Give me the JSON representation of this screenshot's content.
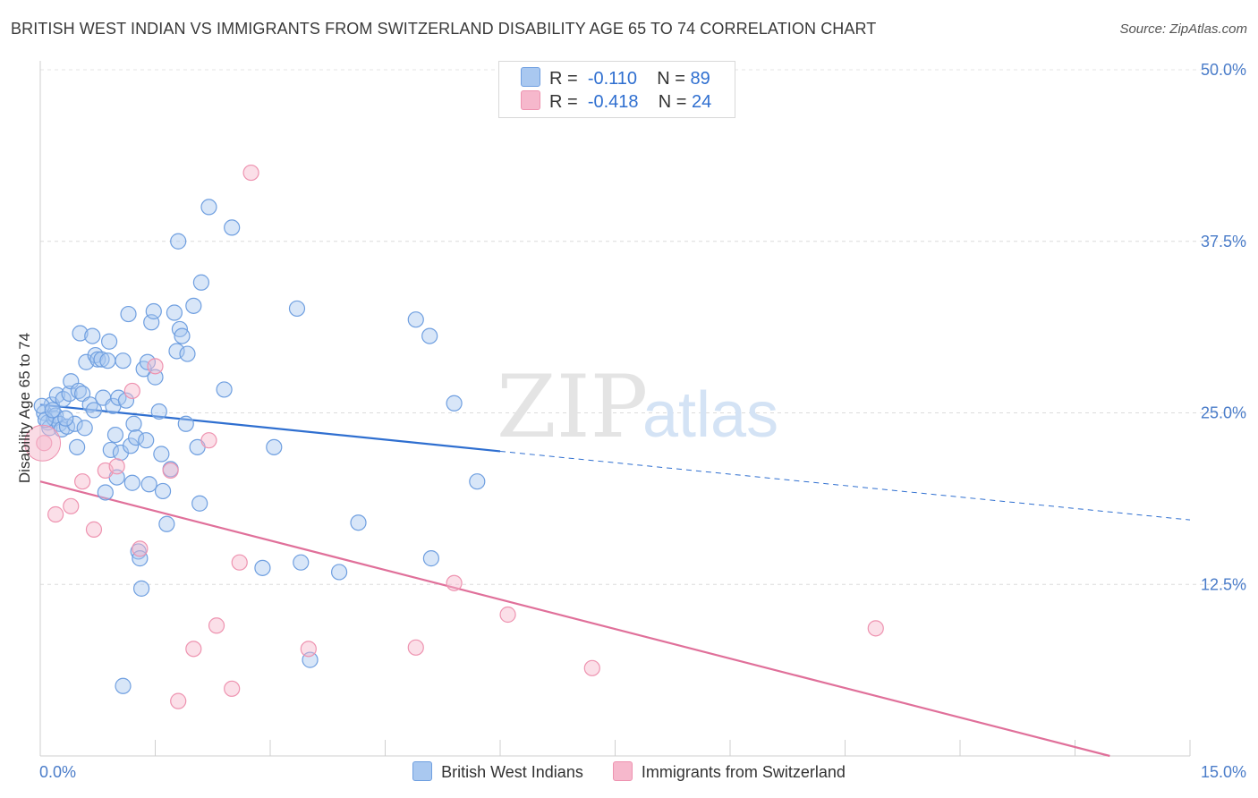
{
  "title": "BRITISH WEST INDIAN VS IMMIGRANTS FROM SWITZERLAND DISABILITY AGE 65 TO 74 CORRELATION CHART",
  "source": "Source: ZipAtlas.com",
  "watermark": {
    "zip": "ZIP",
    "atlas": "atlas"
  },
  "legend_top": {
    "rows": [
      {
        "r_label": "R =",
        "r_value": "-0.110",
        "n_label": "N =",
        "n_value": "89",
        "color": "#a9c8f0"
      },
      {
        "r_label": "R =",
        "r_value": "-0.418",
        "n_label": "N =",
        "n_value": "24",
        "color": "#f6b8cc"
      }
    ]
  },
  "legend_bottom": [
    {
      "label": "British West Indians",
      "color": "#a9c8f0"
    },
    {
      "label": "Immigrants from Switzerland",
      "color": "#f6b8cc"
    }
  ],
  "chart_data": {
    "type": "scatter",
    "ylabel": "Disability Age 65 to 74",
    "xlabel": "",
    "xlim": [
      0,
      15
    ],
    "ylim": [
      0,
      50
    ],
    "x_tick_labels": [
      "0.0%",
      "15.0%"
    ],
    "y_ticks": [
      12.5,
      25.0,
      37.5,
      50.0
    ],
    "y_tick_labels": [
      "12.5%",
      "25.0%",
      "37.5%",
      "50.0%"
    ],
    "grid": true,
    "series": [
      {
        "name": "British West Indians",
        "color": "#6f9fe0",
        "fill": "#a9c8f0",
        "trend": {
          "x0": 0,
          "y0": 25.6,
          "x1": 6.0,
          "y1": 22.2,
          "dash_to_x": 15.0,
          "dash_to_y": 17.2
        },
        "points": [
          [
            0.05,
            25.0
          ],
          [
            0.1,
            24.3
          ],
          [
            0.12,
            23.9
          ],
          [
            0.15,
            25.6
          ],
          [
            0.18,
            24.6
          ],
          [
            0.2,
            24.8
          ],
          [
            0.22,
            26.3
          ],
          [
            0.25,
            24.2
          ],
          [
            0.28,
            23.8
          ],
          [
            0.3,
            26.0
          ],
          [
            0.35,
            24.0
          ],
          [
            0.38,
            26.4
          ],
          [
            0.4,
            27.3
          ],
          [
            0.45,
            24.2
          ],
          [
            0.48,
            22.5
          ],
          [
            0.5,
            26.6
          ],
          [
            0.52,
            30.8
          ],
          [
            0.55,
            26.4
          ],
          [
            0.58,
            23.9
          ],
          [
            0.6,
            28.7
          ],
          [
            0.65,
            25.6
          ],
          [
            0.68,
            30.6
          ],
          [
            0.7,
            25.2
          ],
          [
            0.72,
            29.2
          ],
          [
            0.75,
            28.9
          ],
          [
            0.8,
            28.9
          ],
          [
            0.82,
            26.1
          ],
          [
            0.85,
            19.2
          ],
          [
            0.88,
            28.8
          ],
          [
            0.9,
            30.2
          ],
          [
            0.92,
            22.3
          ],
          [
            0.95,
            25.5
          ],
          [
            0.98,
            23.4
          ],
          [
            1.0,
            20.3
          ],
          [
            1.02,
            26.1
          ],
          [
            1.05,
            22.1
          ],
          [
            1.08,
            28.8
          ],
          [
            1.12,
            25.9
          ],
          [
            1.15,
            32.2
          ],
          [
            1.18,
            22.6
          ],
          [
            1.2,
            19.9
          ],
          [
            1.22,
            24.2
          ],
          [
            1.25,
            23.2
          ],
          [
            1.28,
            14.9
          ],
          [
            1.3,
            14.4
          ],
          [
            1.32,
            12.2
          ],
          [
            1.35,
            28.2
          ],
          [
            1.38,
            23.0
          ],
          [
            1.4,
            28.7
          ],
          [
            1.42,
            19.8
          ],
          [
            1.45,
            31.6
          ],
          [
            1.48,
            32.4
          ],
          [
            1.5,
            27.6
          ],
          [
            1.55,
            25.1
          ],
          [
            1.58,
            22.0
          ],
          [
            1.6,
            19.3
          ],
          [
            1.65,
            16.9
          ],
          [
            1.7,
            20.9
          ],
          [
            1.75,
            32.3
          ],
          [
            1.78,
            29.5
          ],
          [
            1.8,
            37.5
          ],
          [
            1.82,
            31.1
          ],
          [
            1.85,
            30.6
          ],
          [
            1.9,
            24.2
          ],
          [
            1.92,
            29.3
          ],
          [
            2.0,
            32.8
          ],
          [
            2.05,
            22.5
          ],
          [
            2.08,
            18.4
          ],
          [
            2.1,
            34.5
          ],
          [
            2.2,
            40.0
          ],
          [
            2.4,
            26.7
          ],
          [
            2.5,
            38.5
          ],
          [
            2.9,
            13.7
          ],
          [
            3.05,
            22.5
          ],
          [
            3.4,
            14.1
          ],
          [
            3.35,
            32.6
          ],
          [
            3.52,
            7.0
          ],
          [
            3.9,
            13.4
          ],
          [
            4.15,
            17.0
          ],
          [
            4.9,
            31.8
          ],
          [
            5.08,
            30.6
          ],
          [
            5.1,
            14.4
          ],
          [
            5.4,
            25.7
          ],
          [
            5.7,
            20.0
          ],
          [
            1.08,
            5.1
          ],
          [
            0.02,
            25.5
          ],
          [
            0.07,
            24.5
          ],
          [
            0.16,
            25.2
          ],
          [
            0.33,
            24.6
          ]
        ]
      },
      {
        "name": "Immigrants from Switzerland",
        "color": "#ee93b0",
        "fill": "#f6b8cc",
        "trend": {
          "x0": 0,
          "y0": 20.0,
          "x1": 15.0,
          "y1": -1.5
        },
        "points": [
          [
            0.05,
            22.8
          ],
          [
            0.2,
            17.6
          ],
          [
            0.4,
            18.2
          ],
          [
            0.55,
            20.0
          ],
          [
            0.7,
            16.5
          ],
          [
            0.85,
            20.8
          ],
          [
            1.0,
            21.1
          ],
          [
            1.2,
            26.6
          ],
          [
            1.3,
            15.1
          ],
          [
            1.5,
            28.4
          ],
          [
            1.7,
            20.8
          ],
          [
            1.8,
            4.0
          ],
          [
            2.0,
            7.8
          ],
          [
            2.2,
            23.0
          ],
          [
            2.3,
            9.5
          ],
          [
            2.5,
            4.9
          ],
          [
            2.6,
            14.1
          ],
          [
            2.75,
            42.5
          ],
          [
            3.5,
            7.8
          ],
          [
            4.9,
            7.9
          ],
          [
            5.4,
            12.6
          ],
          [
            6.1,
            10.3
          ],
          [
            7.2,
            6.4
          ],
          [
            10.9,
            9.3
          ]
        ]
      }
    ]
  }
}
